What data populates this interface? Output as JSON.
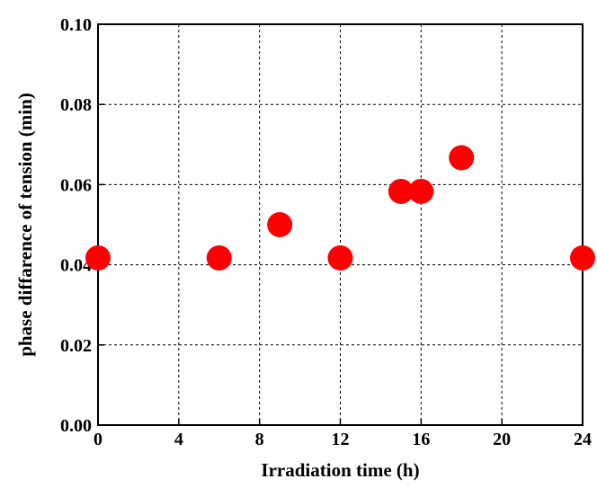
{
  "chart_data": {
    "type": "scatter",
    "title": "",
    "xlabel": "Irradiation time (h)",
    "ylabel": "phase diffarence of tension (min)",
    "xlim": [
      0,
      24
    ],
    "ylim": [
      0,
      0.1
    ],
    "x_ticks": [
      "0",
      "4",
      "8",
      "12",
      "16",
      "20",
      "24"
    ],
    "y_ticks": [
      "0.00",
      "0.02",
      "0.04",
      "0.06",
      "0.08",
      "0.10"
    ],
    "grid": true,
    "grid_style": "dashed",
    "legend": false,
    "series": [
      {
        "color": "#ff0000",
        "marker": "circle",
        "points": [
          {
            "x": 0,
            "y": 0.0417
          },
          {
            "x": 6,
            "y": 0.0417
          },
          {
            "x": 9,
            "y": 0.05
          },
          {
            "x": 12,
            "y": 0.0417
          },
          {
            "x": 15,
            "y": 0.0583
          },
          {
            "x": 16,
            "y": 0.0583
          },
          {
            "x": 18,
            "y": 0.0667
          },
          {
            "x": 24,
            "y": 0.0417
          }
        ]
      }
    ]
  }
}
